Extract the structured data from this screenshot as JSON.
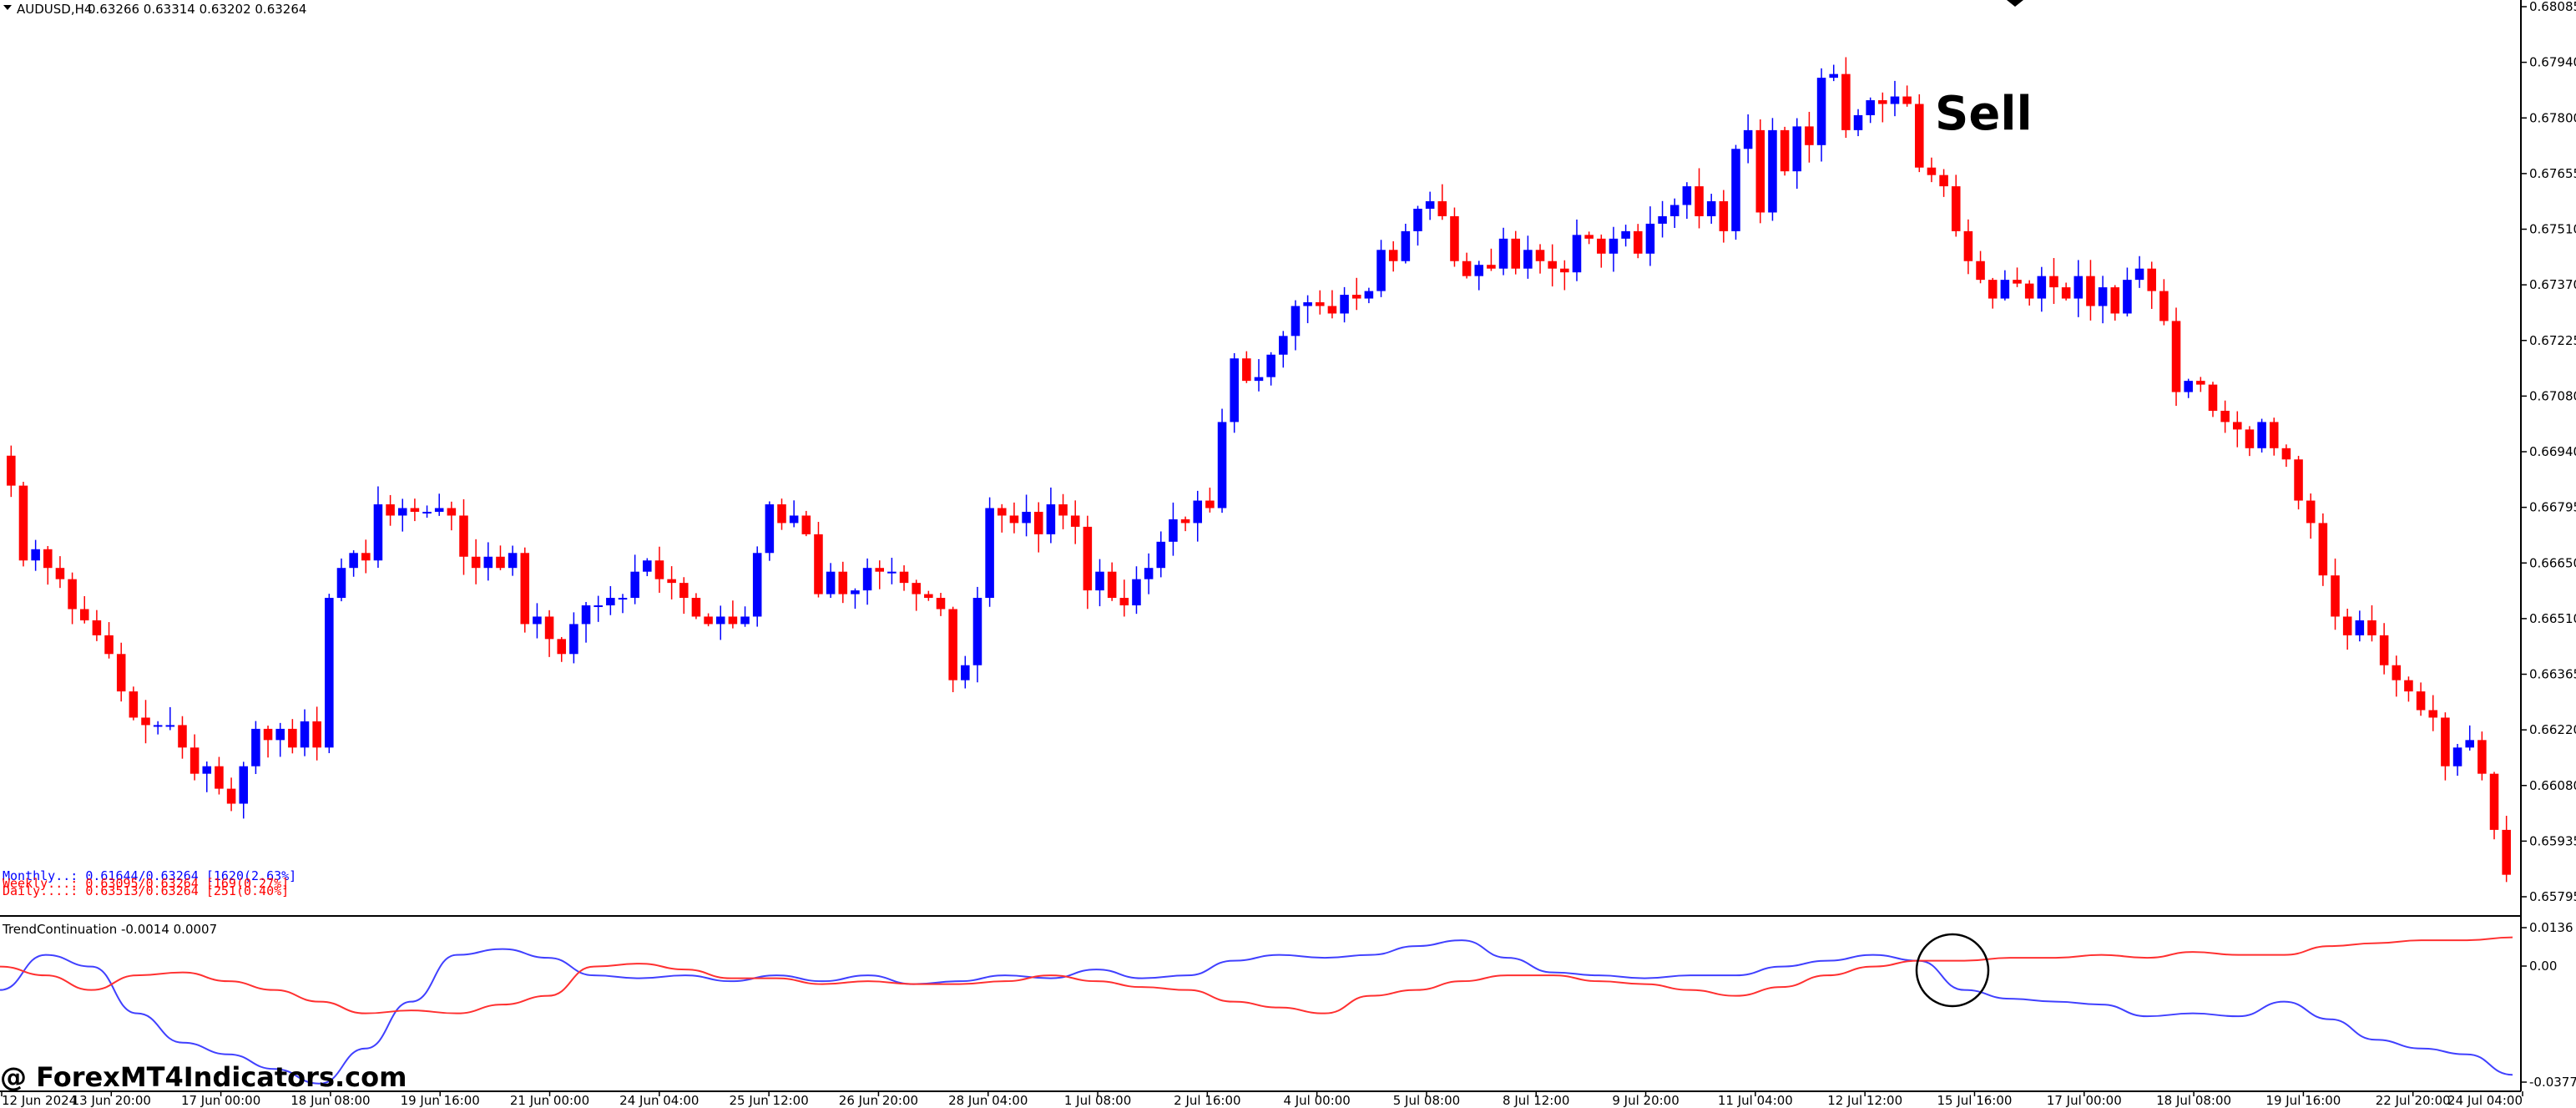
{
  "header": {
    "symbol": "AUDUSD,H4",
    "ohlc": "0.63266 0.63314 0.63202 0.63264"
  },
  "annotations": {
    "sell_label": "Sell",
    "watermark": "@ ForexMT4Indicators.com"
  },
  "stats": {
    "monthly": "Monthly..: 0.61644/0.63264 [1620(2.63%]",
    "weekly": "Weekly...: 0.63095/0.63264 [169(0.27%]",
    "daily": "Daily....: 0.63513/0.63264 [251(0.40%]"
  },
  "colors": {
    "bull": "#0000ff",
    "bear": "#ff0000",
    "indicator_line_1": "#4040ff",
    "indicator_line_2": "#ff3030",
    "axis": "#000000",
    "background": "#ffffff"
  },
  "chart_data": [
    {
      "type": "candlestick",
      "symbol": "AUDUSD,H4",
      "ylim": [
        0.6567,
        0.6808
      ],
      "y_ticks": [
        "0.68085",
        "0.67940",
        "0.67800",
        "0.67655",
        "0.67510",
        "0.67370",
        "0.67225",
        "0.67080",
        "0.66940",
        "0.66795",
        "0.66650",
        "0.66510",
        "0.66365",
        "0.66220",
        "0.66080",
        "0.65935",
        "0.65795"
      ],
      "x_labels": [
        "12 Jun 2024",
        "13 Jun 20:00",
        "17 Jun 00:00",
        "18 Jun 08:00",
        "19 Jun 16:00",
        "21 Jun 00:00",
        "24 Jun 04:00",
        "25 Jun 12:00",
        "26 Jun 20:00",
        "28 Jun 04:00",
        "1 Jul 08:00",
        "2 Jul 16:00",
        "4 Jul 00:00",
        "5 Jul 08:00",
        "8 Jul 12:00",
        "9 Jul 20:00",
        "11 Jul 04:00",
        "12 Jul 12:00",
        "15 Jul 16:00",
        "17 Jul 00:00",
        "18 Jul 08:00",
        "19 Jul 16:00",
        "22 Jul 20:00",
        "24 Jul 04:00"
      ],
      "closes_estimated": [
        0.668,
        0.666,
        0.6663,
        0.6658,
        0.6655,
        0.6647,
        0.6644,
        0.664,
        0.6635,
        0.6625,
        0.6618,
        0.6616,
        0.6616,
        0.6616,
        0.661,
        0.6603,
        0.6605,
        0.6599,
        0.6595,
        0.6605,
        0.6615,
        0.6612,
        0.6615,
        0.661,
        0.6617,
        0.661,
        0.665,
        0.6658,
        0.6662,
        0.666,
        0.6675,
        0.6672,
        0.6674,
        0.6673,
        0.6673,
        0.6674,
        0.6672,
        0.6661,
        0.6658,
        0.6661,
        0.6658,
        0.6662,
        0.6643,
        0.6645,
        0.6639,
        0.6635,
        0.6643,
        0.6648,
        0.6648,
        0.665,
        0.665,
        0.6657,
        0.666,
        0.6655,
        0.6654,
        0.665,
        0.6645,
        0.6643,
        0.6645,
        0.6643,
        0.6645,
        0.6662,
        0.6675,
        0.667,
        0.6672,
        0.6667,
        0.6651,
        0.6657,
        0.6651,
        0.6652,
        0.6658,
        0.6657,
        0.6657,
        0.6654,
        0.6651,
        0.665,
        0.6647,
        0.6628,
        0.6632,
        0.665,
        0.6674,
        0.6672,
        0.667,
        0.6673,
        0.6667,
        0.6675,
        0.6672,
        0.6669,
        0.6652,
        0.6657,
        0.665,
        0.6648,
        0.6655,
        0.6658,
        0.6665,
        0.6671,
        0.667,
        0.6676,
        0.6674,
        0.6697,
        0.6714,
        0.6708,
        0.6709,
        0.6715,
        0.672,
        0.6728,
        0.6729,
        0.6728,
        0.6726,
        0.6731,
        0.673,
        0.6732,
        0.6743,
        0.674,
        0.6748,
        0.6754,
        0.6756,
        0.6752,
        0.674,
        0.6736,
        0.6739,
        0.6738,
        0.6746,
        0.6738,
        0.6743,
        0.674,
        0.6738,
        0.6737,
        0.6747,
        0.6746,
        0.6742,
        0.6746,
        0.6748,
        0.6742,
        0.675,
        0.6752,
        0.6755,
        0.676,
        0.6752,
        0.6756,
        0.6748,
        0.677,
        0.6775,
        0.6753,
        0.6775,
        0.6764,
        0.6776,
        0.6771,
        0.6789,
        0.679,
        0.6775,
        0.6779,
        0.6783,
        0.6782,
        0.6784,
        0.6782,
        0.6765,
        0.6763,
        0.676,
        0.6748,
        0.674,
        0.6735,
        0.673,
        0.6735,
        0.6734,
        0.673,
        0.6736,
        0.6733,
        0.673,
        0.6736,
        0.6728,
        0.6733,
        0.6726,
        0.6735,
        0.6738,
        0.6732,
        0.6724,
        0.6705,
        0.6708,
        0.6707,
        0.67,
        0.6697,
        0.6695,
        0.669,
        0.6697,
        0.669,
        0.6687,
        0.6676,
        0.667,
        0.6656,
        0.6645,
        0.664,
        0.6644,
        0.664,
        0.6632,
        0.6628,
        0.6625,
        0.662,
        0.6618,
        0.6605,
        0.661,
        0.6612,
        0.6603,
        0.6588,
        0.6576
      ]
    },
    {
      "type": "line",
      "title": "TrendContinuation -0.0014 0.0007",
      "ylim": [
        -0.0395,
        0.0136
      ],
      "y_ticks": [
        "0.0136",
        "0.00",
        "-0.0377"
      ],
      "series": [
        {
          "values": [
            -0.008,
            0.004,
            0.0,
            -0.016,
            -0.026,
            -0.03,
            -0.035,
            -0.04,
            -0.028,
            -0.012,
            0.004,
            0.006,
            0.003,
            -0.003,
            -0.004,
            -0.003,
            -0.005,
            -0.003,
            -0.005,
            -0.003,
            -0.006,
            -0.005,
            -0.003,
            -0.004,
            -0.001,
            -0.004,
            -0.003,
            0.002,
            0.004,
            0.003,
            0.004,
            0.007,
            0.009,
            0.003,
            -0.002,
            -0.003,
            -0.004,
            -0.003,
            -0.003,
            0.0,
            0.002,
            0.004,
            0.002,
            -0.008,
            -0.011,
            -0.012,
            -0.013,
            -0.017,
            -0.016,
            -0.017,
            -0.012,
            -0.018,
            -0.025,
            -0.028,
            -0.03,
            -0.037
          ]
        },
        {
          "values": [
            0.0,
            -0.003,
            -0.008,
            -0.003,
            -0.002,
            -0.005,
            -0.008,
            -0.012,
            -0.016,
            -0.015,
            -0.016,
            -0.013,
            -0.01,
            0.0,
            0.001,
            -0.001,
            -0.004,
            -0.004,
            -0.006,
            -0.005,
            -0.006,
            -0.006,
            -0.005,
            -0.003,
            -0.005,
            -0.007,
            -0.008,
            -0.012,
            -0.014,
            -0.016,
            -0.01,
            -0.008,
            -0.005,
            -0.003,
            -0.003,
            -0.005,
            -0.006,
            -0.008,
            -0.01,
            -0.007,
            -0.003,
            0.0,
            0.002,
            0.002,
            0.003,
            0.003,
            0.004,
            0.003,
            0.005,
            0.004,
            0.004,
            0.007,
            0.008,
            0.009,
            0.009,
            0.01
          ]
        }
      ]
    }
  ]
}
